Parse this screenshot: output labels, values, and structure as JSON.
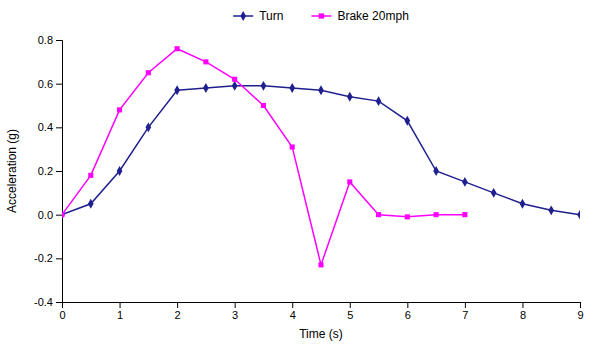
{
  "chart_data": {
    "type": "line",
    "xlabel": "Time (s)",
    "ylabel": "Acceleration (g)",
    "series": [
      {
        "name": "Turn",
        "color": "#1F1F8F",
        "marker": "diamond",
        "line_style": "solid",
        "x": [
          0,
          0.5,
          1.0,
          1.5,
          2.0,
          2.5,
          3.0,
          3.5,
          4.0,
          4.5,
          5.0,
          5.5,
          6.0,
          6.5,
          7.0,
          7.5,
          8.0,
          8.5,
          9.0
        ],
        "values": [
          0,
          0.05,
          0.2,
          0.4,
          0.57,
          0.58,
          0.59,
          0.59,
          0.58,
          0.57,
          0.54,
          0.52,
          0.43,
          0.2,
          0.15,
          0.1,
          0.05,
          0.02,
          0.0
        ]
      },
      {
        "name": "Brake 20mph",
        "color": "#FF00FF",
        "marker": "square",
        "line_style": "solid",
        "x": [
          0,
          0.5,
          1.0,
          1.5,
          2.0,
          2.5,
          3.0,
          3.5,
          4.0,
          4.5,
          5.0,
          5.5,
          6.0,
          6.5,
          7.0
        ],
        "values": [
          0,
          0.18,
          0.48,
          0.65,
          0.76,
          0.7,
          0.62,
          0.5,
          0.31,
          -0.23,
          0.15,
          0.0,
          -0.01,
          0.0,
          0.0
        ]
      }
    ],
    "xlim": [
      0,
      9
    ],
    "ylim": [
      -0.4,
      0.8
    ],
    "xticks": [
      0,
      1,
      2,
      3,
      4,
      5,
      6,
      7,
      8,
      9
    ],
    "yticks": [
      -0.4,
      -0.2,
      {
        "value": 0,
        "label": "0.0"
      },
      0.2,
      0.4,
      0.6,
      0.8
    ],
    "grid": false,
    "legend": "top"
  }
}
